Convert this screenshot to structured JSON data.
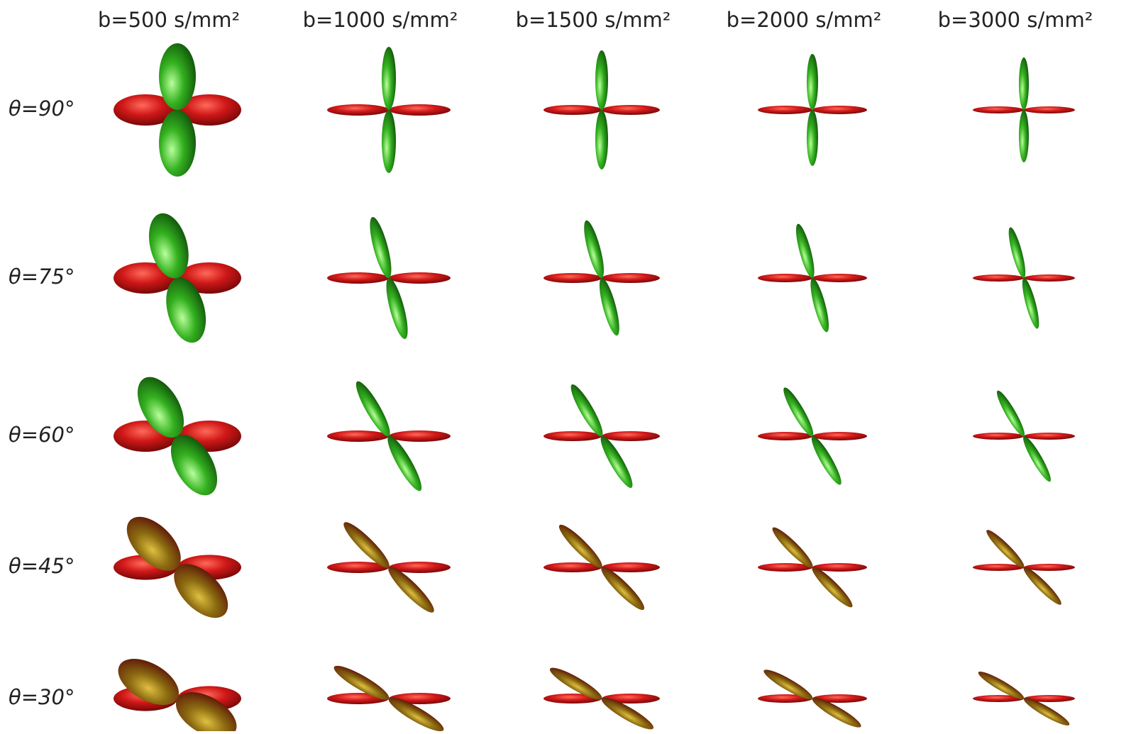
{
  "columns": [
    "b=500 s/mm²",
    "b=1000 s/mm²",
    "b=1500 s/mm²",
    "b=2000 s/mm²",
    "b=3000 s/mm²"
  ],
  "rows": [
    "θ=90°",
    "θ=75°",
    "θ=60°",
    "θ=45°",
    "θ=30°"
  ]
}
